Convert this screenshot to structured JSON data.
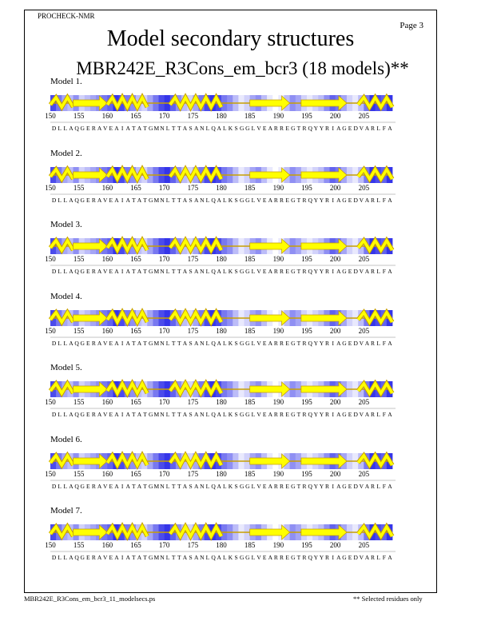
{
  "header": {
    "program": "PROCHECK-NMR",
    "page": "Page  3",
    "title": "Model secondary structures",
    "subtitle": "MBR242E_R3Cons_em_bcr3 (18 models)**"
  },
  "sequence": "DLLAQGERAVEAIATATGMNLTTASANLQALKSGGLVEARREGTRQYYRIAGEDVARLFA",
  "ticks": [
    "150",
    "155",
    "160",
    "165",
    "170",
    "175",
    "180",
    "185",
    "190",
    "195",
    "200",
    "205"
  ],
  "structure": [
    {
      "type": "helix",
      "start": 150,
      "end": 153
    },
    {
      "type": "strand",
      "start": 154,
      "end": 159
    },
    {
      "type": "helix",
      "start": 160,
      "end": 166
    },
    {
      "type": "helix",
      "start": 171,
      "end": 179
    },
    {
      "type": "strand",
      "start": 185,
      "end": 191
    },
    {
      "type": "strand",
      "start": 194,
      "end": 201
    },
    {
      "type": "helix",
      "start": 204,
      "end": 209
    }
  ],
  "shading": [
    0.8,
    0.6,
    0.4,
    0.3,
    0.5,
    0.2,
    0.3,
    0.4,
    0.5,
    0.6,
    0.7,
    0.9,
    0.8,
    0.6,
    0.5,
    0.3,
    0.2,
    0.4,
    0.6,
    0.8,
    0.9,
    0.7,
    0.5,
    0.3,
    0.2,
    0.4,
    0.6,
    0.8,
    0.9,
    0.8,
    0.6,
    0.5,
    0.3,
    0.1,
    0.2,
    0.4,
    0.5,
    0.3,
    0.1,
    0.0,
    0.1,
    0.3,
    0.5,
    0.4,
    0.2,
    0.1,
    0.2,
    0.3,
    0.5,
    0.7,
    0.6,
    0.4,
    0.2,
    0.1,
    0.3,
    0.6,
    0.9,
    0.8,
    0.7,
    0.9
  ],
  "models": [
    {
      "label": "Model  1."
    },
    {
      "label": "Model  2."
    },
    {
      "label": "Model  3."
    },
    {
      "label": "Model  4."
    },
    {
      "label": "Model  5."
    },
    {
      "label": "Model  6."
    },
    {
      "label": "Model  7."
    }
  ],
  "footer": {
    "file": "MBR242E_R3Cons_em_bcr3_11_modelsecs.ps",
    "note": "** Selected residues only"
  },
  "colors": {
    "helix": "#ffff00",
    "strand": "#ffff00",
    "outline": "#c8a000",
    "blue": "#2020e0"
  }
}
